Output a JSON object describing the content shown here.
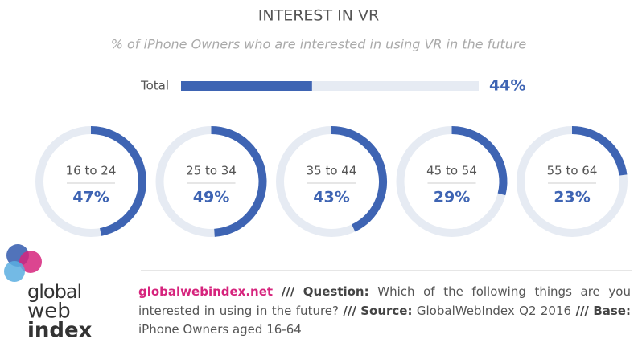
{
  "chart_data": {
    "type": "donut",
    "title": "INTEREST IN VR",
    "subtitle": "% of iPhone Owners who are interested in using VR in the future",
    "total": {
      "label": "Total",
      "value": 44,
      "value_label": "44%"
    },
    "categories": [
      "16 to 24",
      "25 to 34",
      "35 to 44",
      "45 to 54",
      "55 to 64"
    ],
    "values": [
      47,
      49,
      43,
      29,
      23
    ],
    "value_labels": [
      "47%",
      "49%",
      "43%",
      "29%",
      "23%"
    ],
    "color": "#3e64b3",
    "track_color": "#e6ebf3"
  },
  "footer": {
    "site": "globalwebindex.net",
    "sep1": "///",
    "question_label": "Question:",
    "question": "Which of the following things are you interested in using in the future?",
    "sep2": "///",
    "source_label": "Source:",
    "source": "GlobalWebIndex Q2 2016",
    "sep3": "///",
    "base_label": "Base:",
    "base": "iPhone Owners aged 16-64"
  },
  "logo": {
    "line1": "global",
    "line2": "web",
    "line3": "index"
  }
}
